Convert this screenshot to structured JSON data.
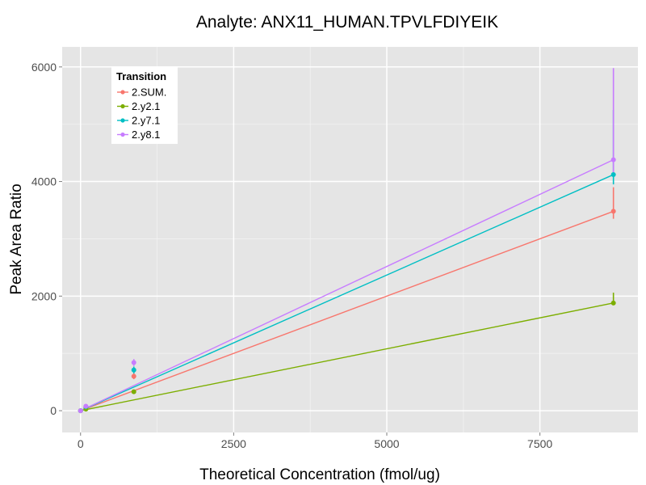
{
  "chart_data": {
    "type": "line",
    "title": "Analyte: ANX11_HUMAN.TPVLFDIYEIK",
    "xlabel": "Theoretical Concentration (fmol/ug)",
    "ylabel": "Peak Area Ratio",
    "xlim": [
      -300,
      9100
    ],
    "ylim": [
      -380,
      6350
    ],
    "x_ticks": [
      0,
      2500,
      5000,
      7500
    ],
    "x_tick_labels": [
      "0",
      "2500",
      "5000",
      "7500"
    ],
    "y_ticks": [
      0,
      2000,
      4000,
      6000
    ],
    "y_tick_labels": [
      "0",
      "2000",
      "4000",
      "6000"
    ],
    "grid": true,
    "legend": {
      "title": "Transition",
      "position": "top-left",
      "entries": [
        "2.SUM.",
        "2.y2.1",
        "2.y7.1",
        "2.y8.1"
      ]
    },
    "series": [
      {
        "name": "2.SUM.",
        "color": "#F8766D",
        "points": [
          {
            "x": 0,
            "y": 0,
            "lo": -10,
            "hi": 10
          },
          {
            "x": 87,
            "y": 55,
            "lo": 45,
            "hi": 65
          },
          {
            "x": 870,
            "y": 600,
            "lo": 550,
            "hi": 650
          },
          {
            "x": 8700,
            "y": 3480,
            "lo": 3350,
            "hi": 3900
          }
        ],
        "fit": [
          [
            0,
            0
          ],
          [
            8700,
            3480
          ]
        ]
      },
      {
        "name": "2.y2.1",
        "color": "#7CAE00",
        "points": [
          {
            "x": 0,
            "y": 0,
            "lo": -5,
            "hi": 5
          },
          {
            "x": 87,
            "y": 28,
            "lo": 22,
            "hi": 34
          },
          {
            "x": 870,
            "y": 330,
            "lo": 300,
            "hi": 360
          },
          {
            "x": 8700,
            "y": 1880,
            "lo": 1850,
            "hi": 2060
          }
        ],
        "fit": [
          [
            0,
            0
          ],
          [
            8700,
            1880
          ]
        ]
      },
      {
        "name": "2.y7.1",
        "color": "#00BFC4",
        "points": [
          {
            "x": 0,
            "y": 0,
            "lo": -10,
            "hi": 10
          },
          {
            "x": 87,
            "y": 70,
            "lo": 60,
            "hi": 80
          },
          {
            "x": 870,
            "y": 710,
            "lo": 650,
            "hi": 770
          },
          {
            "x": 8700,
            "y": 4120,
            "lo": 3950,
            "hi": 5250
          }
        ],
        "fit": [
          [
            0,
            0
          ],
          [
            8700,
            4120
          ]
        ]
      },
      {
        "name": "2.y8.1",
        "color": "#C77CFF",
        "points": [
          {
            "x": 0,
            "y": 0,
            "lo": -10,
            "hi": 10
          },
          {
            "x": 87,
            "y": 78,
            "lo": 68,
            "hi": 88
          },
          {
            "x": 870,
            "y": 840,
            "lo": 780,
            "hi": 900
          },
          {
            "x": 8700,
            "y": 4380,
            "lo": 4150,
            "hi": 5980
          }
        ],
        "fit": [
          [
            0,
            0
          ],
          [
            8700,
            4380
          ]
        ]
      }
    ]
  }
}
